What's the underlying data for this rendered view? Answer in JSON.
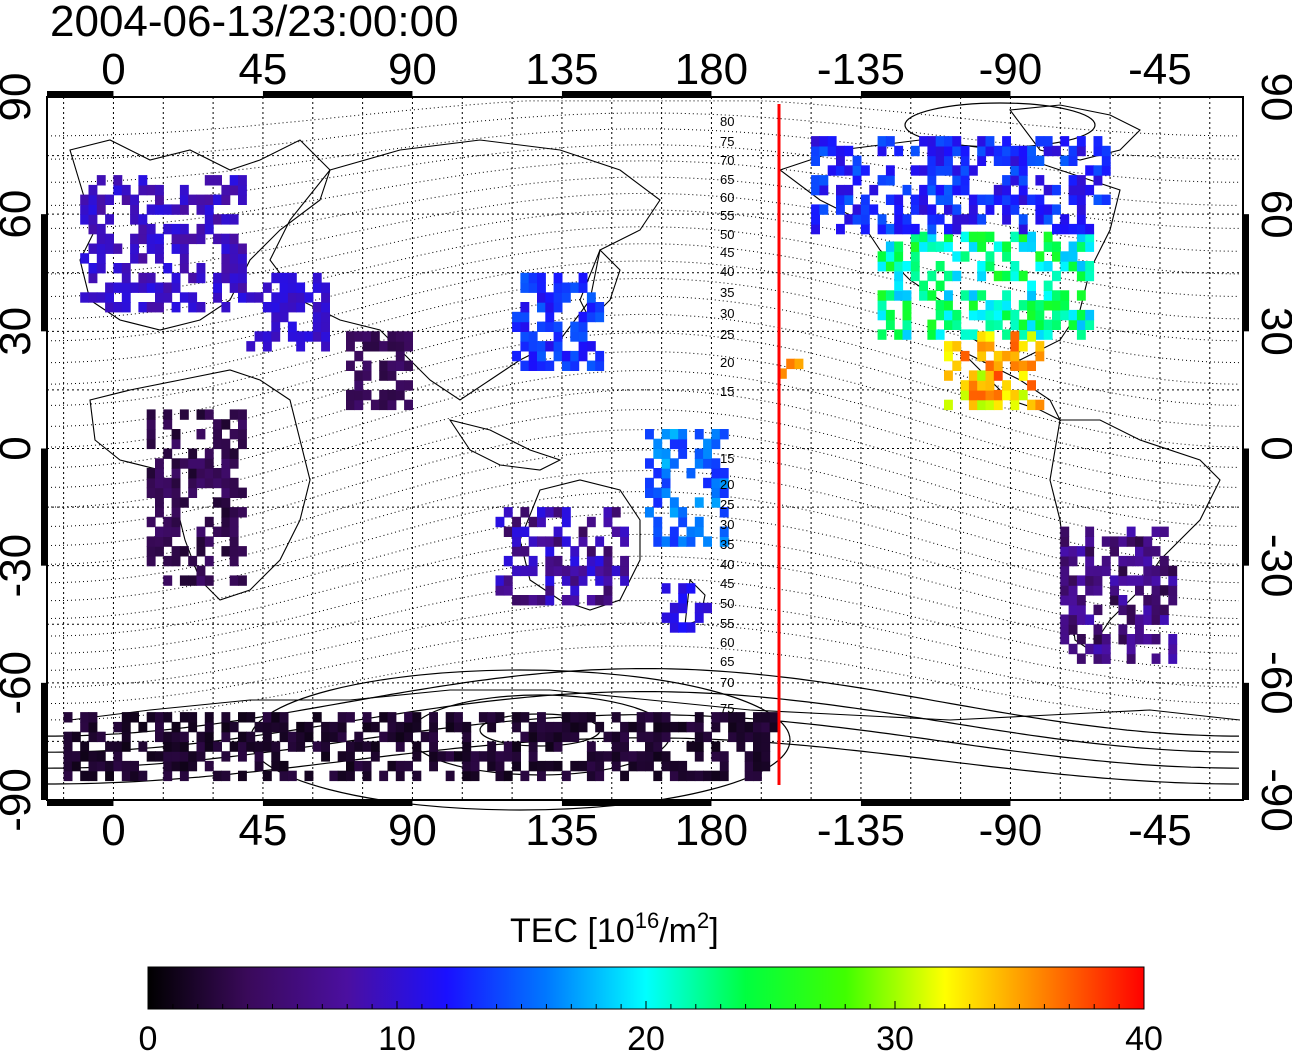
{
  "title": "2004-06-13/23:00:00",
  "top_lon_ticks": [
    "0",
    "45",
    "90",
    "135",
    "180",
    "-135",
    "-90",
    "-45"
  ],
  "bottom_lon_ticks": [
    "0",
    "45",
    "90",
    "135",
    "180",
    "-135",
    "-90",
    "-45"
  ],
  "left_lat_ticks": [
    "90",
    "60",
    "30",
    "0",
    "-30",
    "-60",
    "-90"
  ],
  "right_lat_ticks": [
    "90",
    "60",
    "30",
    "0",
    "-30",
    "-60",
    "-90"
  ],
  "contour_labels": [
    "80",
    "75",
    "70",
    "65",
    "60",
    "55",
    "50",
    "45",
    "40",
    "35",
    "30",
    "25",
    "20",
    "15",
    "15",
    "20",
    "25",
    "30",
    "35",
    "40",
    "45",
    "50",
    "55",
    "60",
    "65",
    "70",
    "75"
  ],
  "colorbar": {
    "title_main": "TEC  [10",
    "title_sup1": "16",
    "title_mid": "/m",
    "title_sup2": "2",
    "title_end": "]",
    "tick_labels": [
      "0",
      "10",
      "20",
      "30",
      "40"
    ],
    "min": 0,
    "max": 40
  },
  "colors": {
    "meridian_line": "#ff0000",
    "colormap": [
      "#000000",
      "#3a0a5a",
      "#4b0fa0",
      "#1a10ff",
      "#0078ff",
      "#00ffff",
      "#00ff40",
      "#40ff00",
      "#ffff00",
      "#ff8000",
      "#ff0000"
    ]
  },
  "map": {
    "lon_start": -20,
    "lon_span": 360,
    "lat_range": [
      -90,
      90
    ],
    "meridian_lon": 187
  },
  "tec_regions": [
    {
      "name": "europe",
      "lon": [
        -10,
        40
      ],
      "lat": [
        35,
        70
      ],
      "tec": [
        8,
        11
      ]
    },
    {
      "name": "east-asia-japan",
      "lon": [
        120,
        147
      ],
      "lat": [
        20,
        45
      ],
      "tec": [
        11,
        15
      ]
    },
    {
      "name": "middle-asia",
      "lon": [
        40,
        65
      ],
      "lat": [
        25,
        45
      ],
      "tec": [
        9,
        11
      ]
    },
    {
      "name": "india",
      "lon": [
        70,
        90
      ],
      "lat": [
        10,
        30
      ],
      "tec": [
        3,
        5
      ]
    },
    {
      "name": "north-america",
      "lon": [
        -130,
        -65
      ],
      "lat": [
        28,
        55
      ],
      "tec": [
        18,
        26
      ]
    },
    {
      "name": "canada",
      "lon": [
        -150,
        -60
      ],
      "lat": [
        55,
        80
      ],
      "tec": [
        10,
        15
      ]
    },
    {
      "name": "gulf-mexico",
      "lon": [
        -110,
        -80
      ],
      "lat": [
        10,
        30
      ],
      "tec": [
        30,
        38
      ]
    },
    {
      "name": "hawaii",
      "lon": [
        -160,
        -154
      ],
      "lat": [
        18,
        23
      ],
      "tec": [
        32,
        37
      ]
    },
    {
      "name": "south-america",
      "lon": [
        -75,
        -40
      ],
      "lat": [
        -55,
        -20
      ],
      "tec": [
        3,
        9
      ]
    },
    {
      "name": "australia",
      "lon": [
        115,
        155
      ],
      "lat": [
        -40,
        -15
      ],
      "tec": [
        4,
        11
      ]
    },
    {
      "name": "new-zealand",
      "lon": [
        165,
        180
      ],
      "lat": [
        -47,
        -35
      ],
      "tec": [
        10,
        12
      ]
    },
    {
      "name": "africa",
      "lon": [
        10,
        40
      ],
      "lat": [
        -35,
        10
      ],
      "tec": [
        2,
        5
      ]
    },
    {
      "name": "antarctica",
      "lon": [
        -15,
        200
      ],
      "lat": [
        -85,
        -68
      ],
      "tec": [
        1,
        3
      ]
    },
    {
      "name": "pacific-islands",
      "lon": [
        160,
        185
      ],
      "lat": [
        -25,
        5
      ],
      "tec": [
        13,
        18
      ]
    }
  ]
}
